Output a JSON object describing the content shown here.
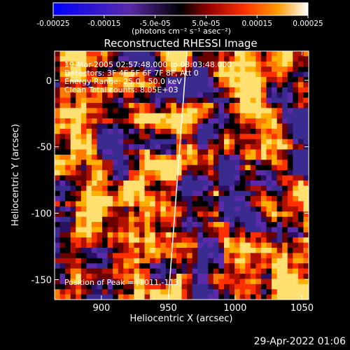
{
  "colorbar": {
    "tick_labels": [
      "-0.00025",
      "-0.00015",
      "-5.0e-05",
      "5.0e-05",
      "0.00015",
      "0.00025"
    ],
    "tick_values": [
      -0.00025,
      -0.00015,
      -5e-05,
      5e-05,
      0.00015,
      0.00025
    ],
    "range": [
      -0.00025,
      0.00025
    ],
    "units_label": "(photons cm⁻² s⁻¹ asec⁻²)",
    "colors": [
      "#0000ff",
      "#5a2aa8",
      "#000000",
      "#8a0000",
      "#ff3000",
      "#ff9a00",
      "#ffffff"
    ]
  },
  "chart_data": {
    "type": "heatmap",
    "title": "Reconstructed RHESSI Image",
    "xlabel": "Heliocentric X (arcsec)",
    "ylabel": "Heliocentric Y (arcsec)",
    "xlim": [
      865,
      1055
    ],
    "ylim": [
      -165,
      22
    ],
    "xticks": [
      900,
      950,
      1000,
      1050
    ],
    "yticks": [
      0,
      -50,
      -100,
      -150
    ],
    "annotations": [
      "19-Mar-2005 02:57:48.000 to 03:03:48.000",
      "Detectors: 3F 4F 5F 6F 7F 8F, Att 0",
      "Energy Range: 25.0 - 50.0 keV",
      "Clean     Total counts: 8.05E+03"
    ],
    "peak_label": "Position of Peak = [1011,-113]",
    "peak": [
      1011,
      -113
    ],
    "limb_line": [
      [
        964,
        22
      ],
      [
        950,
        -165
      ]
    ]
  },
  "timestamp": "29-Apr-2022 01:06"
}
